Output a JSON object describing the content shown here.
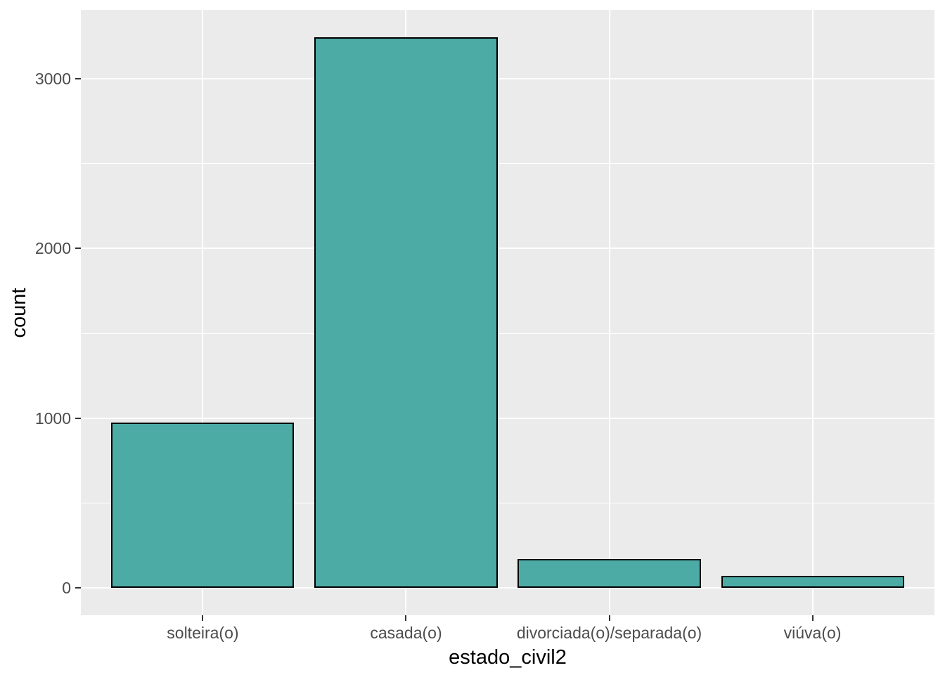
{
  "chart_data": {
    "type": "bar",
    "title": "",
    "xlabel": "estado_civil2",
    "ylabel": "count",
    "categories": [
      "solteira(o)",
      "casada(o)",
      "divorciada(o)/separada(o)",
      "viúva(o)"
    ],
    "values": [
      975,
      3245,
      172,
      70
    ],
    "yticks": [
      0,
      1000,
      2000,
      3000
    ],
    "ytick_labels": [
      "0",
      "1000",
      "2000",
      "3000"
    ],
    "yticks_minor": [
      500,
      1500,
      2500
    ],
    "ylim": [
      -160,
      3405
    ],
    "grid": "on",
    "legend": "none",
    "colors": {
      "bar_fill": "#4DABA6",
      "bar_border": "#000000",
      "panel_bg": "#EBEBEB",
      "grid": "#FFFFFF",
      "tick_label": "#4D4D4D",
      "axis_title": "#000000",
      "tick_mark": "#333333",
      "figure_bg": "#FFFFFF"
    }
  }
}
